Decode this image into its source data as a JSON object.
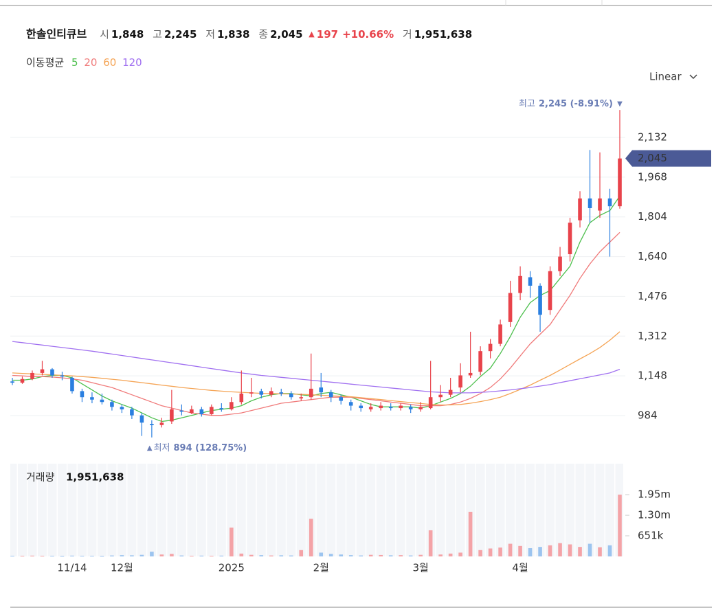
{
  "header": {
    "name": "한솔인티큐브",
    "items": [
      {
        "label": "시",
        "value": "1,848"
      },
      {
        "label": "고",
        "value": "2,245"
      },
      {
        "label": "저",
        "value": "1,838"
      },
      {
        "label": "종",
        "value": "2,045"
      }
    ],
    "change": "197",
    "change_pct": "+10.66%",
    "volume_label": "거",
    "volume_value": "1,951,638",
    "ma_label": "이동평균",
    "scale_selector": "Linear"
  },
  "chart_data": {
    "type": "candlestick",
    "categories": [
      null,
      null,
      null,
      null,
      null,
      null,
      "11/14",
      null,
      null,
      null,
      null,
      "12월",
      null,
      null,
      null,
      null,
      null,
      null,
      null,
      null,
      null,
      null,
      "2025",
      null,
      null,
      null,
      null,
      null,
      null,
      null,
      null,
      "2월",
      null,
      null,
      null,
      null,
      null,
      null,
      null,
      null,
      null,
      "3월",
      null,
      null,
      null,
      null,
      null,
      null,
      null,
      null,
      null,
      "4월",
      null,
      null,
      null,
      null,
      null,
      null,
      null,
      null,
      null,
      null
    ],
    "open": [
      1125,
      1120,
      1135,
      1160,
      1175,
      1150,
      1140,
      1085,
      1060,
      1050,
      1040,
      1020,
      1010,
      985,
      950,
      945,
      960,
      1005,
      995,
      1010,
      990,
      1015,
      1010,
      1040,
      1075,
      1085,
      1070,
      1080,
      1075,
      1055,
      1060,
      1100,
      1080,
      1060,
      1040,
      1025,
      1010,
      1015,
      1020,
      1015,
      1020,
      1010,
      1015,
      1060,
      1070,
      1100,
      1150,
      1165,
      1250,
      1280,
      1370,
      1490,
      1555,
      1520,
      1420,
      1580,
      1650,
      1790,
      1880,
      1830,
      1880,
      1848
    ],
    "high": [
      1140,
      1145,
      1170,
      1210,
      1180,
      1165,
      1145,
      1095,
      1080,
      1075,
      1050,
      1030,
      1020,
      995,
      965,
      975,
      1090,
      1030,
      1025,
      1020,
      1030,
      1035,
      1060,
      1170,
      1140,
      1095,
      1100,
      1095,
      1085,
      1075,
      1240,
      1160,
      1090,
      1070,
      1050,
      1035,
      1035,
      1040,
      1035,
      1035,
      1030,
      1040,
      1210,
      1110,
      1140,
      1200,
      1330,
      1270,
      1300,
      1380,
      1540,
      1600,
      1580,
      1530,
      1600,
      1680,
      1800,
      1910,
      2080,
      2070,
      1920,
      2245
    ],
    "low": [
      1110,
      1115,
      1130,
      1150,
      1140,
      1130,
      1075,
      1040,
      1035,
      1030,
      1005,
      995,
      970,
      900,
      894,
      935,
      950,
      985,
      990,
      980,
      985,
      1000,
      1005,
      1030,
      1060,
      1055,
      1060,
      1065,
      1050,
      1045,
      1050,
      1060,
      1040,
      1030,
      1005,
      1000,
      1000,
      1005,
      1005,
      1005,
      995,
      1000,
      1010,
      1040,
      1060,
      1080,
      1140,
      1150,
      1220,
      1270,
      1350,
      1460,
      1470,
      1330,
      1400,
      1560,
      1620,
      1760,
      1780,
      1800,
      1640,
      1838
    ],
    "close": [
      1120,
      1135,
      1160,
      1175,
      1150,
      1145,
      1085,
      1060,
      1050,
      1040,
      1020,
      1010,
      985,
      955,
      945,
      955,
      1010,
      1000,
      1010,
      990,
      1020,
      1010,
      1040,
      1075,
      1080,
      1070,
      1085,
      1075,
      1060,
      1060,
      1095,
      1080,
      1060,
      1045,
      1025,
      1015,
      1020,
      1025,
      1015,
      1025,
      1010,
      1020,
      1060,
      1070,
      1090,
      1150,
      1160,
      1250,
      1280,
      1360,
      1490,
      1560,
      1520,
      1400,
      1580,
      1640,
      1780,
      1880,
      1840,
      1880,
      1848,
      2045
    ],
    "up_color": "#e8434b",
    "down_color": "#2a7fe0",
    "ylim": [
      814,
      2302
    ],
    "yticks": [
      984,
      {
        "value": 1148,
        "label": "1,148"
      },
      {
        "value": 1312,
        "label": "1,312"
      },
      {
        "value": 1476,
        "label": "1,476"
      },
      {
        "value": 1640,
        "label": "1,640"
      },
      {
        "value": 1804,
        "label": "1,804"
      },
      {
        "value": 1968,
        "label": "1,968"
      },
      {
        "value": 2132,
        "label": "2,132"
      }
    ],
    "grid": true,
    "moving_averages": [
      {
        "name": "5",
        "color": "#4cbf4c",
        "values": [
          1130,
          1130,
          1135,
          1145,
          1150,
          1150,
          1140,
          1115,
          1090,
          1065,
          1045,
          1030,
          1015,
          995,
          975,
          960,
          965,
          975,
          985,
          995,
          1005,
          1010,
          1015,
          1025,
          1045,
          1060,
          1070,
          1075,
          1075,
          1070,
          1065,
          1075,
          1080,
          1070,
          1060,
          1045,
          1030,
          1020,
          1020,
          1020,
          1020,
          1015,
          1025,
          1040,
          1055,
          1075,
          1105,
          1145,
          1180,
          1240,
          1310,
          1390,
          1450,
          1480,
          1500,
          1550,
          1600,
          1700,
          1780,
          1810,
          1830,
          1890
        ]
      },
      {
        "name": "20",
        "color": "#f07a7a",
        "values": [
          1150,
          1148,
          1145,
          1145,
          1143,
          1140,
          1135,
          1130,
          1120,
          1110,
          1100,
          1085,
          1070,
          1055,
          1040,
          1025,
          1015,
          1005,
          995,
          990,
          985,
          985,
          990,
          995,
          1005,
          1015,
          1025,
          1035,
          1040,
          1045,
          1050,
          1055,
          1060,
          1060,
          1060,
          1055,
          1050,
          1045,
          1040,
          1035,
          1030,
          1025,
          1025,
          1025,
          1030,
          1040,
          1055,
          1075,
          1100,
          1135,
          1180,
          1230,
          1280,
          1320,
          1360,
          1420,
          1480,
          1550,
          1610,
          1660,
          1700,
          1740
        ]
      },
      {
        "name": "60",
        "color": "#f5a455",
        "values": [
          1160,
          1158,
          1156,
          1154,
          1152,
          1150,
          1148,
          1145,
          1142,
          1138,
          1134,
          1130,
          1125,
          1120,
          1115,
          1110,
          1105,
          1100,
          1096,
          1092,
          1088,
          1085,
          1082,
          1080,
          1078,
          1076,
          1075,
          1074,
          1073,
          1072,
          1070,
          1068,
          1066,
          1064,
          1062,
          1058,
          1054,
          1050,
          1046,
          1042,
          1038,
          1034,
          1030,
          1028,
          1028,
          1030,
          1035,
          1042,
          1050,
          1060,
          1075,
          1092,
          1110,
          1130,
          1150,
          1172,
          1195,
          1218,
          1240,
          1265,
          1295,
          1330
        ]
      },
      {
        "name": "120",
        "color": "#a070f0",
        "values": [
          1290,
          1285,
          1280,
          1275,
          1270,
          1265,
          1260,
          1255,
          1250,
          1244,
          1238,
          1232,
          1226,
          1220,
          1214,
          1208,
          1202,
          1196,
          1190,
          1184,
          1178,
          1172,
          1166,
          1160,
          1155,
          1150,
          1146,
          1142,
          1138,
          1134,
          1130,
          1126,
          1122,
          1118,
          1114,
          1110,
          1106,
          1102,
          1098,
          1094,
          1090,
          1086,
          1082,
          1080,
          1078,
          1078,
          1078,
          1080,
          1082,
          1086,
          1090,
          1095,
          1100,
          1106,
          1112,
          1120,
          1128,
          1136,
          1144,
          1152,
          1160,
          1175
        ]
      }
    ],
    "last_price": {
      "value": 2045,
      "label": "2,045"
    },
    "annotations": {
      "high": {
        "label": "최고",
        "value": "2,245 (-8.91%)"
      },
      "low": {
        "label": "최저",
        "value": "894 (128.75%)"
      }
    },
    "volume": {
      "title": "거래량",
      "current": "1,951,638",
      "up_color": "#f4a3a7",
      "down_color": "#9cc4ef",
      "values": [
        20000,
        20000,
        25000,
        20000,
        20000,
        15000,
        25000,
        20000,
        20000,
        15000,
        30000,
        40000,
        35000,
        50000,
        150000,
        60000,
        80000,
        30000,
        20000,
        25000,
        20000,
        25000,
        911000,
        90000,
        50000,
        40000,
        30000,
        35000,
        30000,
        200000,
        1190000,
        120000,
        80000,
        60000,
        40000,
        30000,
        50000,
        45000,
        35000,
        40000,
        30000,
        50000,
        825000,
        60000,
        90000,
        120000,
        1410000,
        200000,
        250000,
        280000,
        400000,
        330000,
        260000,
        300000,
        350000,
        420000,
        380000,
        300000,
        400000,
        290000,
        350000,
        1951638
      ],
      "ylim": [
        0,
        2929500
      ],
      "yticks": [
        {
          "value": 651000,
          "label": "651k"
        },
        {
          "value": 1300000,
          "label": "1.30m"
        },
        {
          "value": 1950000,
          "label": "1.95m"
        }
      ]
    }
  }
}
